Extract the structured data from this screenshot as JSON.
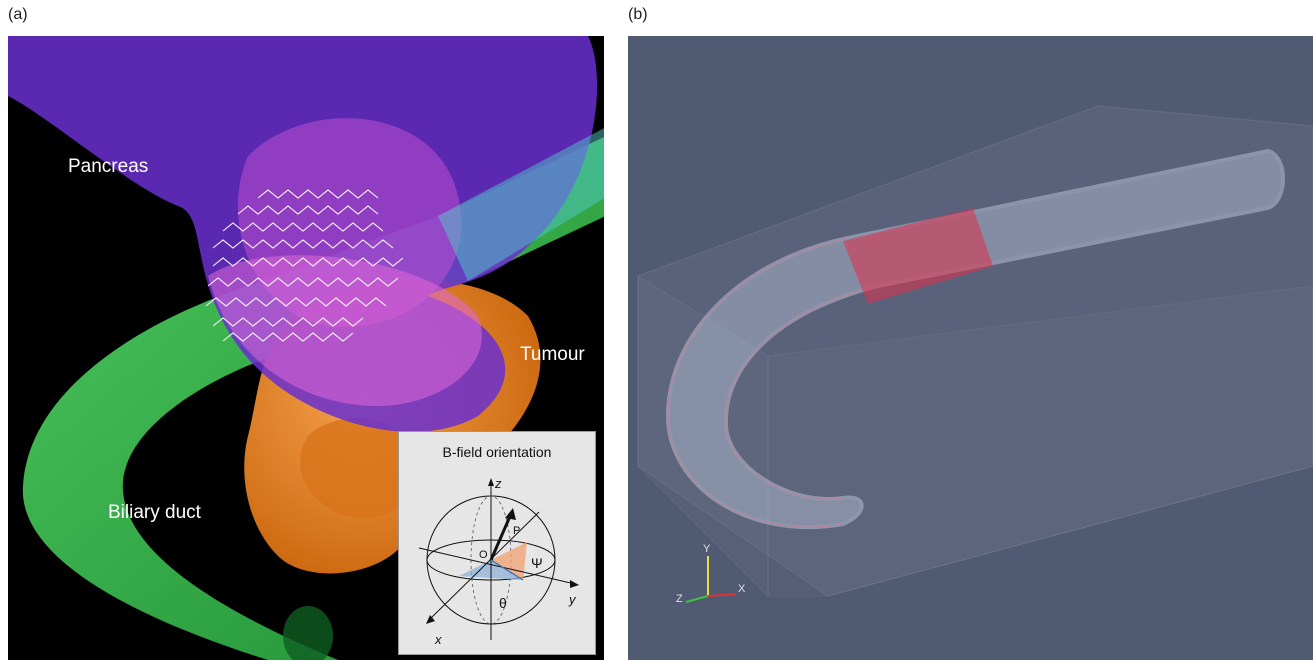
{
  "panels": {
    "a": {
      "label": "(a)",
      "organ_labels": {
        "pancreas": "Pancreas",
        "tumour": "Tumour",
        "biliary_duct": "Biliary duct"
      },
      "inset": {
        "title": "B-field orientation",
        "axis_z": "z",
        "axis_y": "y",
        "axis_x": "x",
        "point_p": "P",
        "origin_o": "O",
        "angle_psi": "Ψ",
        "angle_theta": "θ"
      },
      "colors": {
        "pancreas": "#6a2fd0",
        "tumour": "#e8841c",
        "duct": "#2fbf48",
        "stent": "#ffffff"
      }
    },
    "b": {
      "label": "(b)",
      "axes_triad": {
        "y": "Y",
        "z": "Z",
        "x": "X"
      },
      "colors": {
        "background": "#515a73",
        "tube": "#c8d2e6",
        "stent": "#e0304a"
      }
    }
  }
}
